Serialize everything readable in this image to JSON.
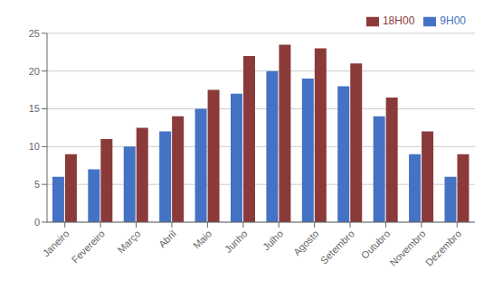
{
  "chart_data": {
    "type": "bar",
    "categories": [
      "Janeiro",
      "Fevereiro",
      "Março",
      "Abril",
      "Maio",
      "Junho",
      "Julho",
      "Agosto",
      "Setembro",
      "Outubro",
      "Novembro",
      "Dezembro"
    ],
    "series": [
      {
        "name": "9H00",
        "color": "#4472C4",
        "values": [
          6,
          7,
          10,
          12,
          15,
          17,
          20,
          19,
          18,
          14,
          9,
          6
        ]
      },
      {
        "name": "18H00",
        "color": "#8B3A3A",
        "values": [
          9,
          11,
          12.5,
          14,
          17.5,
          22,
          23.5,
          23,
          21,
          16.5,
          12,
          9
        ]
      }
    ],
    "ylim": [
      0,
      25
    ],
    "yticks": [
      0,
      5,
      10,
      15,
      20,
      25
    ],
    "grid": true,
    "legend": "upper right"
  }
}
